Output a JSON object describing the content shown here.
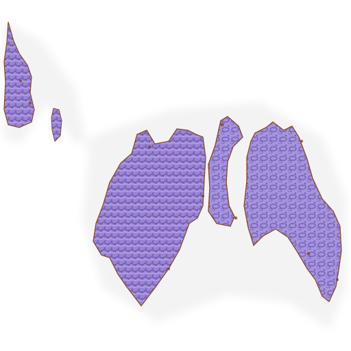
{
  "image": {
    "subject": "tissue-section-scan",
    "colors": {
      "background": "#ffffff",
      "halo": "#f3f3f3",
      "tissue_light": "#b7a6e0",
      "tissue_mid": "#8f78cc",
      "tissue_dark": "#5d4aa3",
      "stain_edge": "#8a4b1f"
    }
  }
}
